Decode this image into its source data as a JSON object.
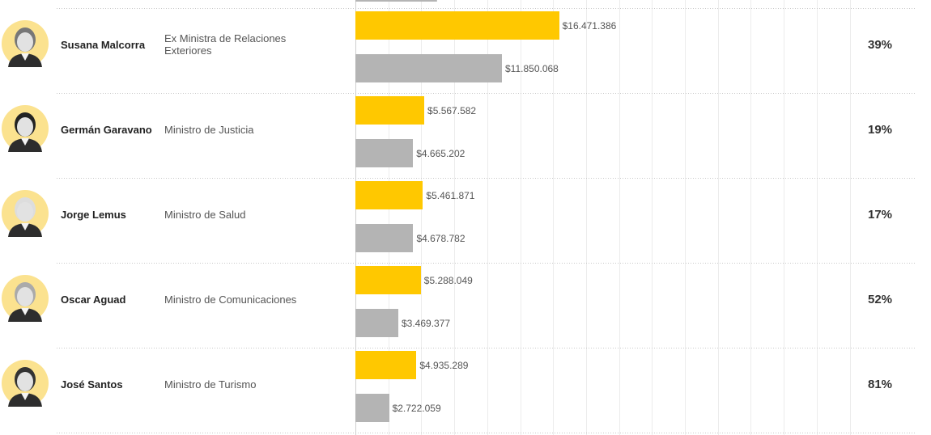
{
  "chart_data": {
    "type": "bar",
    "orientation": "horizontal",
    "value_unit": "$",
    "xlim": [
      0,
      40000000
    ],
    "grid": true,
    "colors": {
      "current": "#ffc800",
      "previous": "#b4b4b4"
    },
    "top_partial_row": {
      "previous": 6600000
    },
    "rows": [
      {
        "name": "Susana Malcorra",
        "role_lines": [
          "Ex Ministra de Relaciones",
          "Exteriores"
        ],
        "current": 16471386,
        "current_label": "$16.471.386",
        "previous": 11850068,
        "previous_label": "$11.850.068",
        "change": "39%"
      },
      {
        "name": "Germán Garavano",
        "role_lines": [
          "Ministro de Justicia"
        ],
        "current": 5567582,
        "current_label": "$5.567.582",
        "previous": 4665202,
        "previous_label": "$4.665.202",
        "change": "19%"
      },
      {
        "name": "Jorge Lemus",
        "role_lines": [
          "Ministro de Salud"
        ],
        "current": 5461871,
        "current_label": "$5.461.871",
        "previous": 4678782,
        "previous_label": "$4.678.782",
        "change": "17%"
      },
      {
        "name": "Oscar Aguad",
        "role_lines": [
          "Ministro de Comunicaciones"
        ],
        "current": 5288049,
        "current_label": "$5.288.049",
        "previous": 3469377,
        "previous_label": "$3.469.377",
        "change": "52%"
      },
      {
        "name": "José Santos",
        "role_lines": [
          "Ministro de Turismo"
        ],
        "current": 4935289,
        "current_label": "$4.935.289",
        "previous": 2722059,
        "previous_label": "$2.722.059",
        "change": "81%"
      }
    ]
  }
}
